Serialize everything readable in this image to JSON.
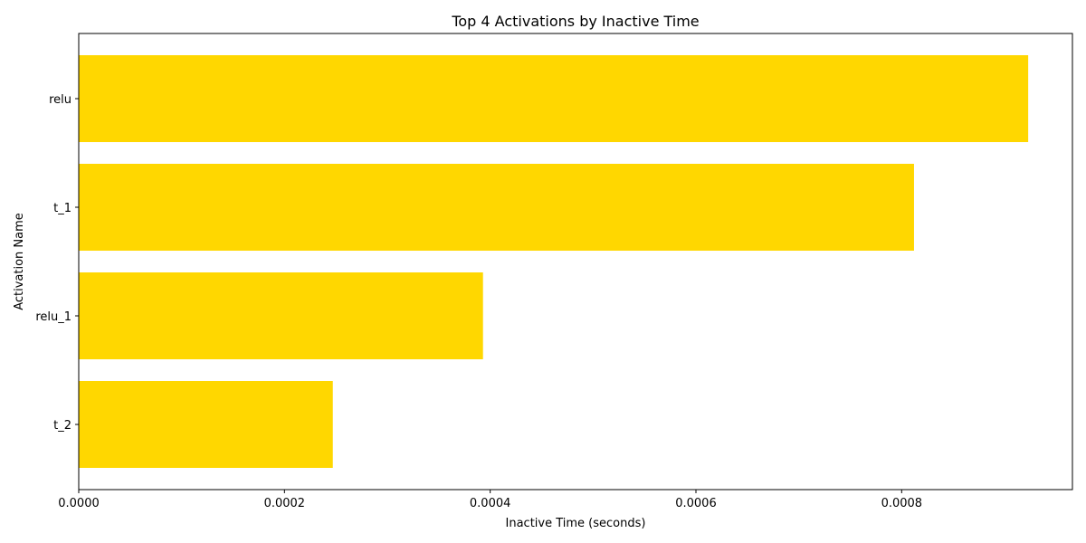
{
  "chart_data": {
    "type": "bar",
    "orientation": "horizontal",
    "title": "Top 4 Activations by Inactive Time",
    "xlabel": "Inactive Time (seconds)",
    "ylabel": "Activation Name",
    "categories": [
      "relu",
      "t_1",
      "relu_1",
      "t_2"
    ],
    "values": [
      0.000923,
      0.000812,
      0.000393,
      0.000247
    ],
    "bar_color": "#FFD700",
    "xlim": [
      0,
      0.000966
    ],
    "xticks": [
      0,
      0.0002,
      0.0004,
      0.0006,
      0.0008
    ],
    "xtick_labels": [
      "0.0000",
      "0.0002",
      "0.0004",
      "0.0006",
      "0.0008"
    ],
    "grid": false,
    "legend": "none"
  }
}
